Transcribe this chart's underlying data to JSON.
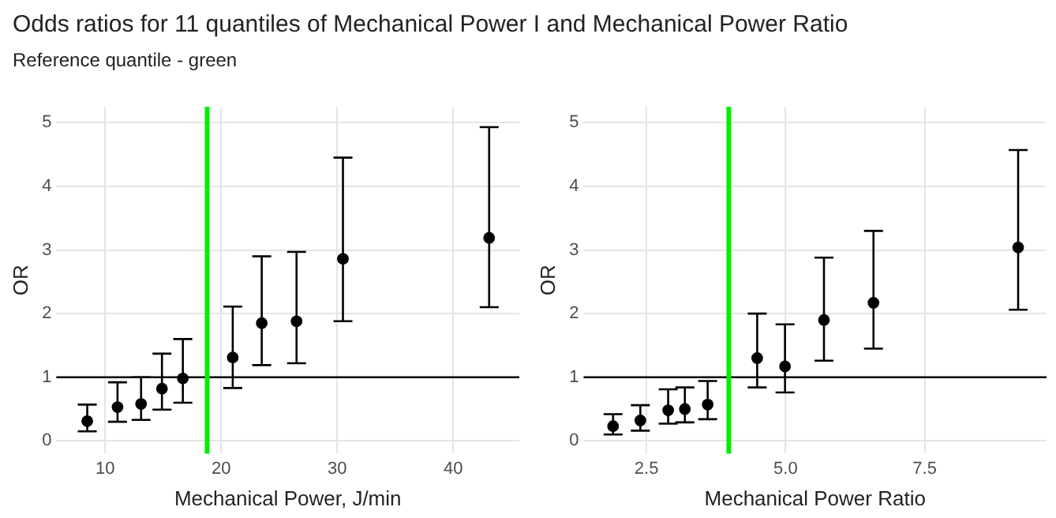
{
  "chart_data": [
    {
      "type": "scatter",
      "title": "Odds ratios for 11 quantiles of Mechanical Power I and Mechanical Power Ratio",
      "subtitle": "Reference quantile - green",
      "xlabel": "Mechanical Power, J/min",
      "ylabel": "OR",
      "x": [
        8.46,
        11.07,
        13.1,
        14.9,
        16.7,
        21.0,
        23.5,
        26.5,
        30.5,
        43.1
      ],
      "values": [
        0.31,
        0.53,
        0.58,
        0.82,
        0.98,
        1.31,
        1.85,
        1.88,
        2.86,
        3.19
      ],
      "errors": [
        [
          0.15,
          0.57
        ],
        [
          0.3,
          0.92
        ],
        [
          0.33,
          1.0
        ],
        [
          0.49,
          1.37
        ],
        [
          0.6,
          1.6
        ],
        [
          0.83,
          2.11
        ],
        [
          1.19,
          2.9
        ],
        [
          1.22,
          2.97
        ],
        [
          1.88,
          4.45
        ],
        [
          2.1,
          4.93
        ]
      ],
      "color": "#000000",
      "marker": "circle",
      "legend": false,
      "grid": true,
      "xlim": [
        5.8,
        45.7
      ],
      "xticks": [
        10,
        20,
        30,
        40
      ],
      "ylim": [
        -0.2,
        5.25
      ],
      "yticks": [
        0,
        1,
        2,
        3,
        4,
        5
      ],
      "ref_lines": [
        {
          "axis": "y",
          "value": 1,
          "color": "#000000"
        },
        {
          "axis": "x",
          "value": 18.8,
          "color": "#00ee00"
        }
      ]
    },
    {
      "type": "scatter",
      "xlabel": "Mechanical Power Ratio",
      "ylabel": "OR",
      "x": [
        1.9,
        2.39,
        2.89,
        3.19,
        3.6,
        4.49,
        4.99,
        5.69,
        6.58,
        9.18
      ],
      "values": [
        0.23,
        0.32,
        0.48,
        0.5,
        0.57,
        1.3,
        1.17,
        1.9,
        2.17,
        3.04
      ],
      "errors": [
        [
          0.1,
          0.42
        ],
        [
          0.16,
          0.56
        ],
        [
          0.27,
          0.81
        ],
        [
          0.29,
          0.84
        ],
        [
          0.34,
          0.94
        ],
        [
          0.84,
          2.0
        ],
        [
          0.76,
          1.83
        ],
        [
          1.26,
          2.88
        ],
        [
          1.45,
          3.3
        ],
        [
          2.06,
          4.57
        ]
      ],
      "color": "#000000",
      "marker": "circle",
      "legend": false,
      "grid": true,
      "xlim": [
        1.37,
        9.69
      ],
      "xticks": [
        {
          "value": 2.5,
          "label": "2.5"
        },
        {
          "value": 5,
          "label": "5.0"
        },
        {
          "value": 7.5,
          "label": "7.5"
        }
      ],
      "ylim": [
        -0.2,
        5.25
      ],
      "yticks": [
        0,
        1,
        2,
        3,
        4,
        5
      ],
      "ref_lines": [
        {
          "axis": "y",
          "value": 1,
          "color": "#000000"
        },
        {
          "axis": "x",
          "value": 3.98,
          "color": "#00ee00"
        }
      ]
    }
  ]
}
